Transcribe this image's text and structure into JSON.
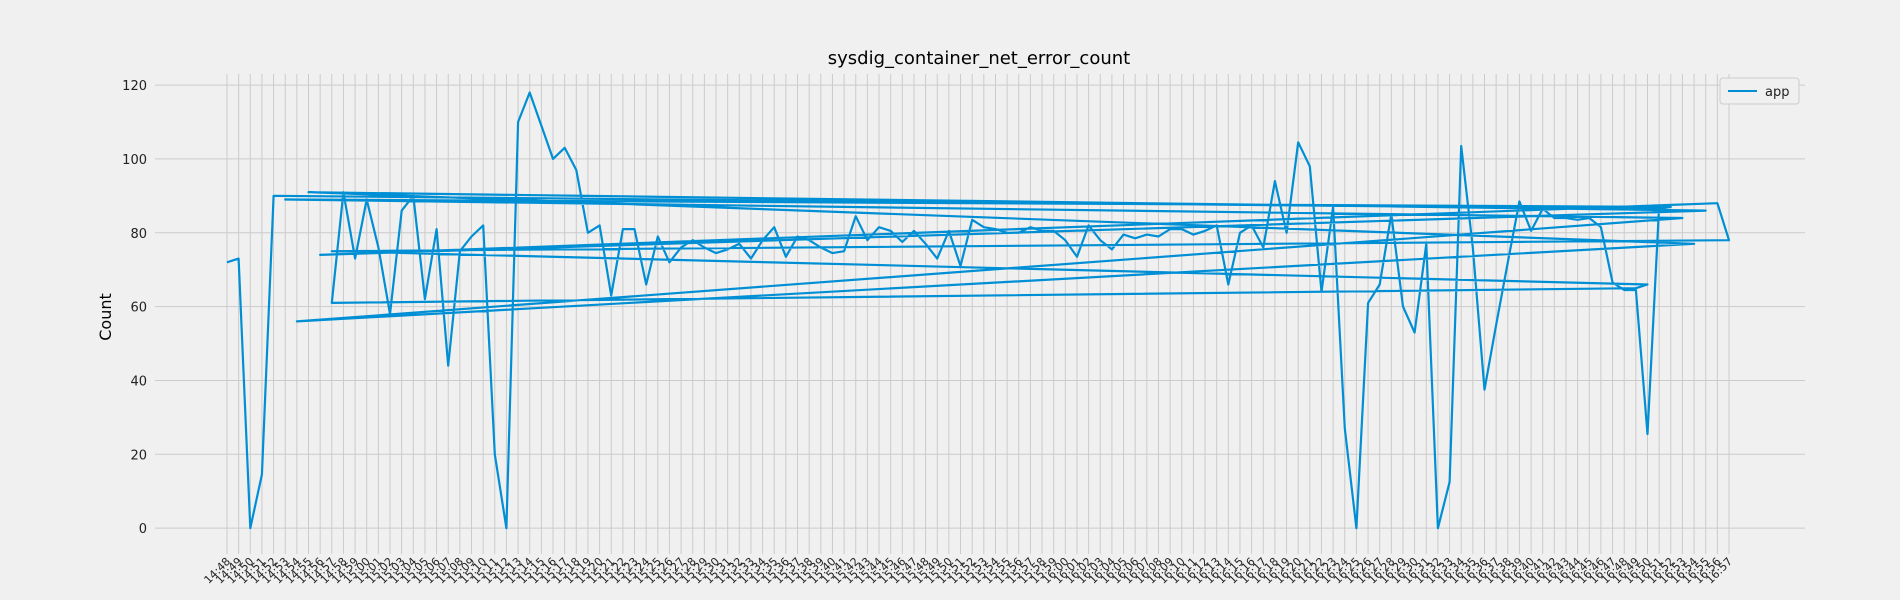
{
  "chart_data": {
    "type": "line",
    "title": "sysdig_container_net_error_count",
    "xlabel": "",
    "ylabel": "Count",
    "ylim": [
      -7,
      123
    ],
    "yticks": [
      0,
      20,
      40,
      60,
      80,
      100,
      120
    ],
    "grid": true,
    "legend_position": "top-right",
    "color": "#008fd5",
    "categories": [
      "14:48",
      "14:49",
      "14:50",
      "14:51",
      "14:52",
      "14:53",
      "14:54",
      "14:55",
      "14:56",
      "14:57",
      "14:58",
      "14:59",
      "15:00",
      "15:01",
      "15:02",
      "15:03",
      "15:04",
      "15:05",
      "15:06",
      "15:07",
      "15:08",
      "15:09",
      "15:10",
      "15:11",
      "15:12",
      "15:13",
      "15:14",
      "15:15",
      "15:16",
      "15:17",
      "15:18",
      "15:19",
      "15:20",
      "15:21",
      "15:22",
      "15:23",
      "15:24",
      "15:25",
      "15:26",
      "15:27",
      "15:28",
      "15:29",
      "15:30",
      "15:31",
      "15:32",
      "15:33",
      "15:34",
      "15:35",
      "15:36",
      "15:37",
      "15:38",
      "15:39",
      "15:40",
      "15:41",
      "15:42",
      "15:43",
      "15:44",
      "15:45",
      "15:46",
      "15:47",
      "15:48",
      "15:49",
      "15:50",
      "15:51",
      "15:52",
      "15:53",
      "15:54",
      "15:55",
      "15:56",
      "15:57",
      "15:58",
      "15:59",
      "16:00",
      "16:01",
      "16:02",
      "16:03",
      "16:04",
      "16:05",
      "16:06",
      "16:07",
      "16:08",
      "16:09",
      "16:10",
      "16:11",
      "16:12",
      "16:13",
      "16:14",
      "16:15",
      "16:16",
      "16:17",
      "16:18",
      "16:19",
      "16:20",
      "16:21",
      "16:22",
      "16:23",
      "16:24",
      "16:25",
      "16:26",
      "16:27",
      "16:28",
      "16:29",
      "16:30",
      "16:31",
      "16:32",
      "16:33",
      "16:34",
      "16:35",
      "16:36",
      "16:37",
      "16:38",
      "16:39",
      "16:40",
      "16:41",
      "16:42",
      "16:43",
      "16:44",
      "16:45",
      "16:46",
      "16:47",
      "16:48",
      "16:49",
      "16:50",
      "16:51",
      "16:52",
      "16:53",
      "16:54",
      "16:55",
      "16:56",
      "16:57"
    ],
    "series": [
      {
        "name": "app",
        "x": [
          "14:48",
          "14:49",
          "14:50",
          "14:51",
          "14:52",
          "16:51",
          "16:52",
          "14:53",
          "16:53",
          "14:54",
          "16:54",
          "14:55",
          "16:55",
          "14:56",
          "16:56",
          "16:57",
          "14:57",
          "16:50",
          "16:49",
          "14:57",
          "14:58",
          "14:59",
          "15:00",
          "15:01",
          "15:02",
          "15:03",
          "15:04",
          "15:05",
          "15:06",
          "15:07",
          "15:08",
          "15:09",
          "15:10",
          "15:11",
          "15:12",
          "15:13",
          "15:14",
          "15:15",
          "15:16",
          "15:17",
          "15:18",
          "15:19",
          "15:20",
          "15:21",
          "15:22",
          "15:23",
          "15:24",
          "15:25",
          "15:26",
          "15:27",
          "15:28",
          "15:29",
          "15:30",
          "15:31",
          "15:32",
          "15:33",
          "15:34",
          "15:35",
          "15:36",
          "15:37",
          "15:38",
          "15:39",
          "15:40",
          "15:41",
          "15:42",
          "15:43",
          "15:44",
          "15:45",
          "15:46",
          "15:47",
          "15:48",
          "15:49",
          "15:50",
          "15:51",
          "15:52",
          "15:53",
          "15:54",
          "15:55",
          "15:56",
          "15:57",
          "15:58",
          "15:59",
          "16:00",
          "16:01",
          "16:02",
          "16:03",
          "16:04",
          "16:05",
          "16:06",
          "16:07",
          "16:08",
          "16:09",
          "16:10",
          "16:11",
          "16:12",
          "16:13",
          "16:14",
          "16:15",
          "16:16",
          "16:17",
          "16:18",
          "16:19",
          "16:20",
          "16:21",
          "16:22",
          "16:23",
          "16:24",
          "16:25",
          "16:26",
          "16:27",
          "16:28",
          "16:29",
          "16:30",
          "16:31",
          "16:32",
          "16:33",
          "16:34",
          "16:35",
          "16:36",
          "16:37",
          "16:38",
          "16:39",
          "16:40",
          "16:41",
          "16:42",
          "16:43",
          "16:44",
          "16:45",
          "16:46",
          "16:47",
          "16:48",
          "16:49",
          "16:50",
          "16:51"
        ],
        "values": [
          72,
          73,
          0,
          14.5,
          90,
          86.5,
          87,
          89,
          84,
          56,
          77,
          91,
          86,
          74,
          88,
          78,
          75,
          66,
          65,
          61,
          91,
          73,
          89,
          76,
          58,
          86,
          90,
          62,
          81,
          44,
          75,
          79,
          82,
          20,
          0,
          110,
          118,
          109,
          100,
          103,
          97,
          80,
          82,
          63,
          81,
          81,
          66,
          79,
          72,
          76,
          78,
          76,
          74.5,
          75.5,
          77,
          73,
          78,
          81.5,
          73.5,
          79,
          78,
          76,
          74.5,
          75,
          84.5,
          78,
          81.5,
          80.5,
          77.5,
          80.5,
          77,
          73,
          80.5,
          71,
          83.5,
          81.5,
          81,
          80,
          80,
          81.5,
          80.5,
          80.5,
          78,
          73.5,
          82,
          78,
          75.5,
          79.5,
          78.5,
          79.5,
          79,
          81,
          81,
          79.5,
          80.5,
          82,
          66,
          80,
          82,
          76,
          94,
          80,
          104.5,
          98,
          64,
          87,
          27,
          0,
          61,
          66,
          85,
          60,
          53,
          77,
          0,
          12.5,
          103.5,
          76,
          37.5,
          55,
          72,
          88.5,
          80.5,
          86.5,
          84,
          84,
          83.5,
          84,
          81.5,
          66.5,
          64.5,
          64.5,
          25.5,
          87
        ]
      }
    ]
  }
}
